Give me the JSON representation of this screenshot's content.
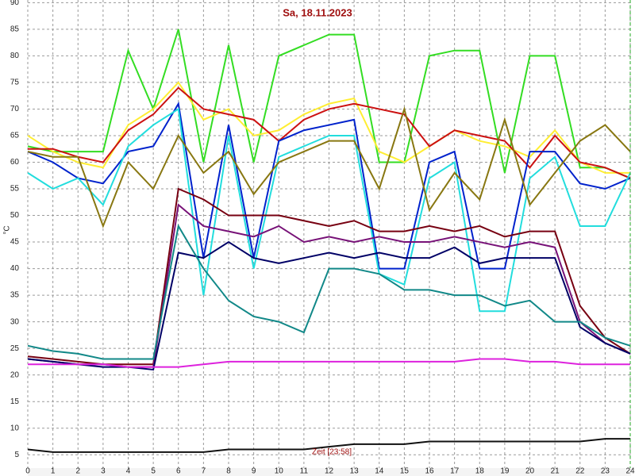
{
  "chart_data": {
    "type": "line",
    "title": "Sa, 18.11.2023",
    "ylabel": "°C",
    "annotation": "Zeit [23:58]",
    "grid": true,
    "xlim": [
      0,
      24
    ],
    "ylim": [
      2.5,
      90.5
    ],
    "xticks": [
      0,
      1,
      2,
      3,
      4,
      5,
      6,
      7,
      8,
      9,
      10,
      11,
      12,
      13,
      14,
      15,
      16,
      17,
      18,
      19,
      20,
      21,
      22,
      23,
      24
    ],
    "yticks": [
      5,
      10,
      15,
      20,
      25,
      30,
      35,
      40,
      45,
      50,
      55,
      60,
      65,
      70,
      75,
      80,
      85,
      90
    ],
    "x": [
      0,
      1,
      2,
      3,
      4,
      5,
      6,
      7,
      8,
      9,
      10,
      11,
      12,
      13,
      14,
      15,
      16,
      17,
      18,
      19,
      20,
      21,
      22,
      23,
      24
    ],
    "series": [
      {
        "color": "#33dd22",
        "values": [
          63,
          62,
          62,
          62,
          81,
          70,
          85,
          60,
          82,
          60,
          80,
          82,
          84,
          84,
          60,
          60,
          80,
          81,
          81,
          58,
          80,
          80,
          59,
          59,
          57
        ]
      },
      {
        "color": "#ffee33",
        "values": [
          65,
          62,
          60,
          59,
          67,
          70,
          75,
          68,
          70,
          65,
          66,
          69,
          71,
          72,
          62,
          60,
          63,
          66,
          64,
          63,
          61,
          66,
          60,
          58,
          58
        ]
      },
      {
        "color": "#cc1111",
        "values": [
          62.5,
          62.5,
          61,
          60,
          66,
          69,
          74,
          70,
          69,
          68,
          64,
          68,
          70,
          71,
          70,
          69,
          63,
          66,
          65,
          64,
          59,
          65,
          60,
          59,
          57
        ]
      },
      {
        "color": "#0022cc",
        "values": [
          62,
          60,
          57,
          56,
          62,
          63,
          71,
          42,
          67,
          42,
          64,
          66,
          67,
          68,
          40,
          40,
          60,
          62,
          40,
          40,
          62,
          62,
          56,
          55,
          57
        ]
      },
      {
        "color": "#22dddd",
        "values": [
          58,
          55,
          57,
          52,
          63,
          67,
          70,
          35,
          65,
          40,
          61,
          63,
          65,
          65,
          39,
          37,
          57,
          60,
          32,
          32,
          57,
          61,
          48,
          48,
          58
        ]
      },
      {
        "color": "#887711",
        "values": [
          62,
          61,
          61,
          48,
          60,
          55,
          65,
          58,
          62,
          54,
          60,
          62,
          64,
          64,
          55,
          70,
          51,
          58,
          53,
          68,
          52,
          58,
          64,
          67,
          62
        ]
      },
      {
        "color": "#770011",
        "values": [
          23.5,
          23,
          22.5,
          22,
          22,
          22,
          55,
          53,
          50,
          50,
          50,
          49,
          48,
          49,
          47,
          47,
          48,
          47,
          48,
          46,
          47,
          47,
          33,
          27,
          24
        ]
      },
      {
        "color": "#771177",
        "values": [
          23,
          22.5,
          22,
          22,
          21.5,
          21.5,
          52,
          48,
          47,
          46,
          48,
          45,
          46,
          45,
          46,
          45,
          45,
          46,
          45,
          44,
          45,
          44,
          30,
          26,
          24
        ]
      },
      {
        "color": "#000066",
        "values": [
          23,
          22.5,
          22,
          21.5,
          21.5,
          21,
          43,
          42,
          45,
          42,
          41,
          42,
          43,
          42,
          43,
          42,
          42,
          44,
          41,
          42,
          42,
          42,
          29,
          26,
          24
        ]
      },
      {
        "color": "#118888",
        "values": [
          25.5,
          24.5,
          24,
          23,
          23,
          23,
          48,
          40,
          34,
          31,
          30,
          28,
          40,
          40,
          39,
          36,
          36,
          35,
          35,
          33,
          34,
          30,
          30,
          27,
          25.5
        ]
      },
      {
        "color": "#dd22dd",
        "values": [
          22,
          22,
          22,
          22,
          21.5,
          21.5,
          21.5,
          22,
          22.5,
          22.5,
          22.5,
          22.5,
          22.5,
          22.5,
          22.5,
          22.5,
          22.5,
          22.5,
          23,
          23,
          22.5,
          22.5,
          22,
          22,
          22
        ]
      },
      {
        "color": "#111111",
        "values": [
          6,
          5.5,
          5.5,
          5.5,
          5.5,
          5.5,
          5.5,
          5.5,
          6,
          6,
          6,
          6,
          6.5,
          7,
          7,
          7,
          7.5,
          7.5,
          7.5,
          7.5,
          7.5,
          7.5,
          7.5,
          8,
          8
        ]
      }
    ]
  }
}
